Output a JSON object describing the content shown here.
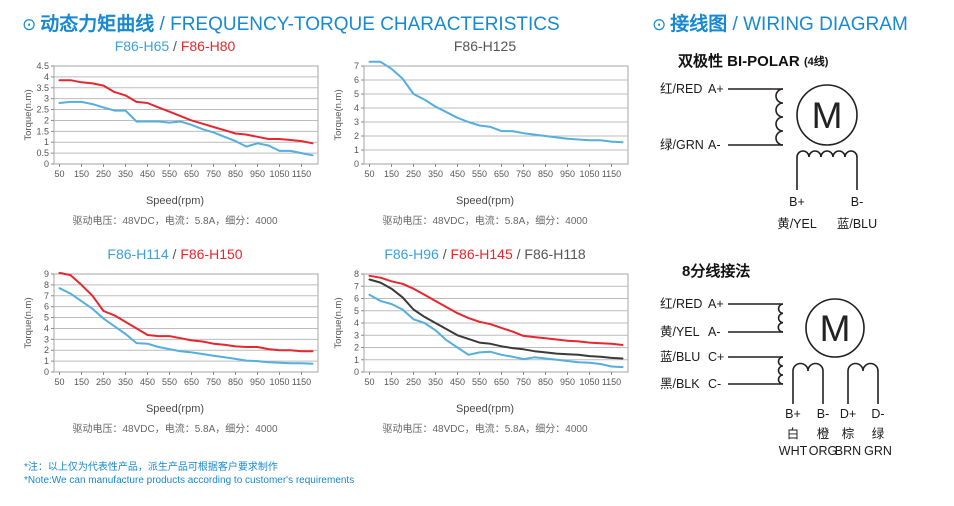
{
  "left_section": {
    "icon": "⊙",
    "title_cn": "动态力矩曲线",
    "sep": " / ",
    "title_en": "FREQUENCY-TORQUE CHARACTERISTICS"
  },
  "right_section": {
    "icon": "⊙",
    "title_cn": "接线图",
    "sep": " / ",
    "title_en": "WIRING DIAGRAM"
  },
  "footnote": {
    "line1": "*注：以上仅为代表性产品，派生产品可根据客户要求制作",
    "line2": "*Note:We can manufacture products according to customer's requirements"
  },
  "colors": {
    "accent_blue": "#1789d2",
    "curve_blue": "#54aede",
    "curve_red": "#e8262d",
    "curve_black": "#3a3a3a",
    "title_blue": "#3b9fdd",
    "title_gray": "#555555"
  },
  "chart_data": [
    {
      "type": "line",
      "title_parts": [
        {
          "text": "F86-H65",
          "color": "#3b9fdd"
        },
        {
          "text": "F86-H80",
          "color": "#e8262d"
        }
      ],
      "separator": " / ",
      "separator_color": "#555555",
      "xlabel": "Speed(rpm)",
      "ylabel": "Torque(n.m)",
      "caption": "驱动电压：48VDC，电流：5.8A，细分：4000",
      "xlim": [
        25,
        1225
      ],
      "ylim": [
        0,
        4.5
      ],
      "ytick": 0.5,
      "xticks": [
        50,
        150,
        250,
        350,
        450,
        550,
        650,
        750,
        850,
        950,
        1050,
        1150
      ],
      "x": [
        50,
        100,
        150,
        200,
        250,
        300,
        350,
        400,
        450,
        500,
        550,
        600,
        650,
        700,
        750,
        800,
        850,
        900,
        950,
        1000,
        1050,
        1100,
        1150,
        1200
      ],
      "series": [
        {
          "name": "F86-H65",
          "color": "#54aede",
          "values": [
            2.8,
            2.85,
            2.85,
            2.75,
            2.6,
            2.45,
            2.45,
            1.95,
            1.95,
            1.95,
            1.9,
            1.95,
            1.8,
            1.6,
            1.45,
            1.25,
            1.05,
            0.8,
            0.95,
            0.85,
            0.6,
            0.6,
            0.5,
            0.4
          ]
        },
        {
          "name": "F86-H80",
          "color": "#e8262d",
          "values": [
            3.85,
            3.85,
            3.75,
            3.7,
            3.6,
            3.3,
            3.15,
            2.85,
            2.8,
            2.6,
            2.4,
            2.2,
            2.0,
            1.85,
            1.7,
            1.55,
            1.4,
            1.35,
            1.25,
            1.15,
            1.15,
            1.1,
            1.05,
            0.95
          ]
        }
      ]
    },
    {
      "type": "line",
      "title_parts": [
        {
          "text": "F86-H125",
          "color": "#555555"
        }
      ],
      "separator": " / ",
      "separator_color": "#555555",
      "xlabel": "Speed(rpm)",
      "ylabel": "Torque(n.m)",
      "caption": "驱动电压：48VDC，电流：5.8A，细分：4000",
      "xlim": [
        25,
        1225
      ],
      "ylim": [
        0,
        7
      ],
      "ytick": 1,
      "xticks": [
        50,
        150,
        250,
        350,
        450,
        550,
        650,
        750,
        850,
        950,
        1050,
        1150
      ],
      "x": [
        50,
        100,
        150,
        200,
        250,
        300,
        350,
        400,
        450,
        500,
        550,
        600,
        650,
        700,
        750,
        800,
        850,
        900,
        950,
        1000,
        1050,
        1100,
        1150,
        1200
      ],
      "series": [
        {
          "name": "F86-H125",
          "color": "#54aede",
          "values": [
            7.3,
            7.3,
            6.8,
            6.1,
            5.0,
            4.6,
            4.1,
            3.7,
            3.3,
            3.0,
            2.75,
            2.65,
            2.35,
            2.35,
            2.2,
            2.1,
            2.0,
            1.9,
            1.8,
            1.75,
            1.7,
            1.7,
            1.6,
            1.55
          ]
        }
      ]
    },
    {
      "type": "line",
      "title_parts": [
        {
          "text": "F86-H114",
          "color": "#3b9fdd"
        },
        {
          "text": "F86-H150",
          "color": "#e8262d"
        }
      ],
      "separator": " / ",
      "separator_color": "#555555",
      "xlabel": "Speed(rpm)",
      "ylabel": "Torque(n.m)",
      "caption": "驱动电压：48VDC，电流：5.8A，细分：4000",
      "xlim": [
        25,
        1225
      ],
      "ylim": [
        0,
        9
      ],
      "ytick": 1,
      "xticks": [
        50,
        150,
        250,
        350,
        450,
        550,
        650,
        750,
        850,
        950,
        1050,
        1150
      ],
      "x": [
        50,
        100,
        150,
        200,
        250,
        300,
        350,
        400,
        450,
        500,
        550,
        600,
        650,
        700,
        750,
        800,
        850,
        900,
        950,
        1000,
        1050,
        1100,
        1150,
        1200
      ],
      "series": [
        {
          "name": "F86-H114",
          "color": "#54aede",
          "values": [
            7.7,
            7.2,
            6.5,
            5.8,
            4.9,
            4.2,
            3.5,
            2.65,
            2.6,
            2.3,
            2.1,
            1.9,
            1.8,
            1.65,
            1.5,
            1.35,
            1.2,
            1.05,
            1.0,
            0.9,
            0.85,
            0.8,
            0.8,
            0.75
          ]
        },
        {
          "name": "F86-H150",
          "color": "#e8262d",
          "values": [
            9.1,
            8.9,
            8.0,
            7.0,
            5.6,
            5.2,
            4.6,
            4.0,
            3.4,
            3.3,
            3.3,
            3.1,
            2.9,
            2.8,
            2.6,
            2.5,
            2.35,
            2.3,
            2.3,
            2.1,
            2.0,
            2.0,
            1.9,
            1.9
          ]
        }
      ]
    },
    {
      "type": "line",
      "title_parts": [
        {
          "text": "F86-H96",
          "color": "#3b9fdd"
        },
        {
          "text": "F86-H145",
          "color": "#e8262d"
        },
        {
          "text": "F86-H118",
          "color": "#555555"
        }
      ],
      "separator": " / ",
      "separator_color": "#555555",
      "xlabel": "Speed(rpm)",
      "ylabel": "Torque(n.m)",
      "caption": "驱动电压：48VDC，电流：5.8A，细分：4000",
      "xlim": [
        25,
        1225
      ],
      "ylim": [
        0,
        8
      ],
      "ytick": 1,
      "xticks": [
        50,
        150,
        250,
        350,
        450,
        550,
        650,
        750,
        850,
        950,
        1050,
        1150
      ],
      "x": [
        50,
        100,
        150,
        200,
        250,
        300,
        350,
        400,
        450,
        500,
        550,
        600,
        650,
        700,
        750,
        800,
        850,
        900,
        950,
        1000,
        1050,
        1100,
        1150,
        1200
      ],
      "series": [
        {
          "name": "F86-H96",
          "color": "#54aede",
          "values": [
            6.3,
            5.8,
            5.55,
            5.1,
            4.3,
            4.0,
            3.4,
            2.6,
            2.0,
            1.4,
            1.6,
            1.65,
            1.4,
            1.25,
            1.05,
            1.2,
            1.1,
            1.0,
            0.9,
            0.8,
            0.75,
            0.65,
            0.45,
            0.4
          ]
        },
        {
          "name": "F86-H145",
          "color": "#e8262d",
          "values": [
            7.85,
            7.7,
            7.4,
            7.2,
            6.8,
            6.3,
            5.8,
            5.3,
            4.8,
            4.4,
            4.1,
            3.9,
            3.6,
            3.3,
            2.95,
            2.85,
            2.75,
            2.65,
            2.55,
            2.5,
            2.4,
            2.35,
            2.3,
            2.2
          ]
        },
        {
          "name": "F86-H118",
          "color": "#3a3a3a",
          "values": [
            7.55,
            7.3,
            6.8,
            6.1,
            5.1,
            4.5,
            4.0,
            3.5,
            3.0,
            2.7,
            2.4,
            2.3,
            2.1,
            1.95,
            1.85,
            1.7,
            1.6,
            1.5,
            1.45,
            1.4,
            1.3,
            1.25,
            1.15,
            1.1
          ]
        }
      ]
    }
  ],
  "wiring": {
    "bipolar": {
      "title": "双极性 BI-POLAR",
      "title_suffix": "(4线)",
      "motor": "M",
      "a_plus_wire": "红/RED",
      "a_plus": "A+",
      "a_minus_wire": "绿/GRN",
      "a_minus": "A-",
      "b_plus": "B+",
      "b_minus": "B-",
      "b_plus_wire": "黄/YEL",
      "b_minus_wire": "蓝/BLU"
    },
    "eight": {
      "title": "8分线接法",
      "motor": "M",
      "rows": [
        {
          "wire": "红/RED",
          "t": "A+"
        },
        {
          "wire": "黄/YEL",
          "t": "A-"
        },
        {
          "wire": "蓝/BLU",
          "t": "C+"
        },
        {
          "wire": "黑/BLK",
          "t": "C-"
        }
      ],
      "bottom": [
        {
          "t": "B+",
          "cn": "白",
          "en": "WHT"
        },
        {
          "t": "B-",
          "cn": "橙",
          "en": "ORG"
        },
        {
          "t": "D+",
          "cn": "棕",
          "en": "BRN"
        },
        {
          "t": "D-",
          "cn": "绿",
          "en": "GRN"
        }
      ]
    }
  }
}
